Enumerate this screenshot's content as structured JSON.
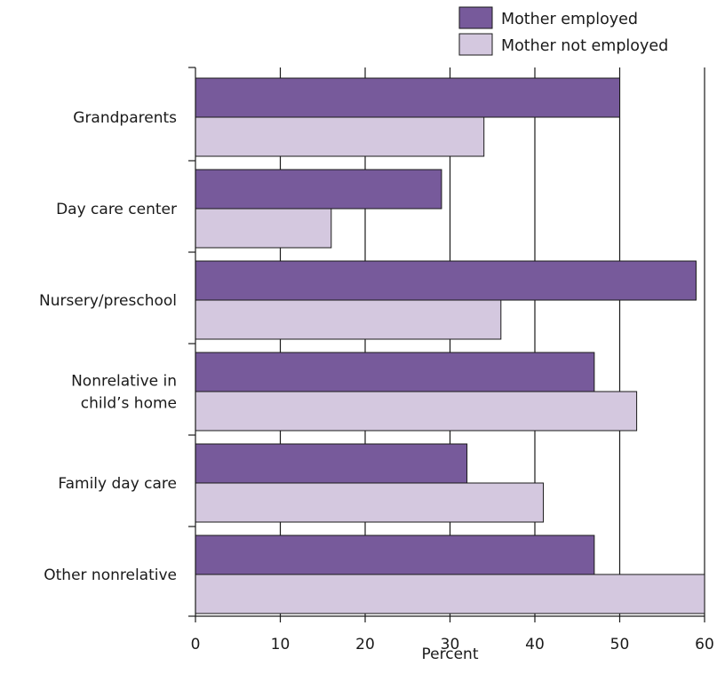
{
  "chart_data": {
    "type": "bar",
    "orientation": "horizontal",
    "categories": [
      [
        "Grandparents"
      ],
      [
        "Day care center"
      ],
      [
        "Nursery/preschool"
      ],
      [
        "Nonrelative in",
        "child’s home"
      ],
      [
        "Family day care"
      ],
      [
        "Other nonrelative"
      ]
    ],
    "series": [
      {
        "name": "Mother employed",
        "color": "#775a9b",
        "values": [
          50,
          29,
          59,
          47,
          32,
          47
        ]
      },
      {
        "name": "Mother not employed",
        "color": "#d4c8df",
        "values": [
          34,
          16,
          36,
          52,
          41,
          60
        ]
      }
    ],
    "xlabel": "Percent",
    "xlim": [
      0,
      60
    ],
    "xticks": [
      0,
      10,
      20,
      30,
      40,
      50,
      60
    ],
    "grid": "vertical",
    "legend_position": "top-right"
  }
}
